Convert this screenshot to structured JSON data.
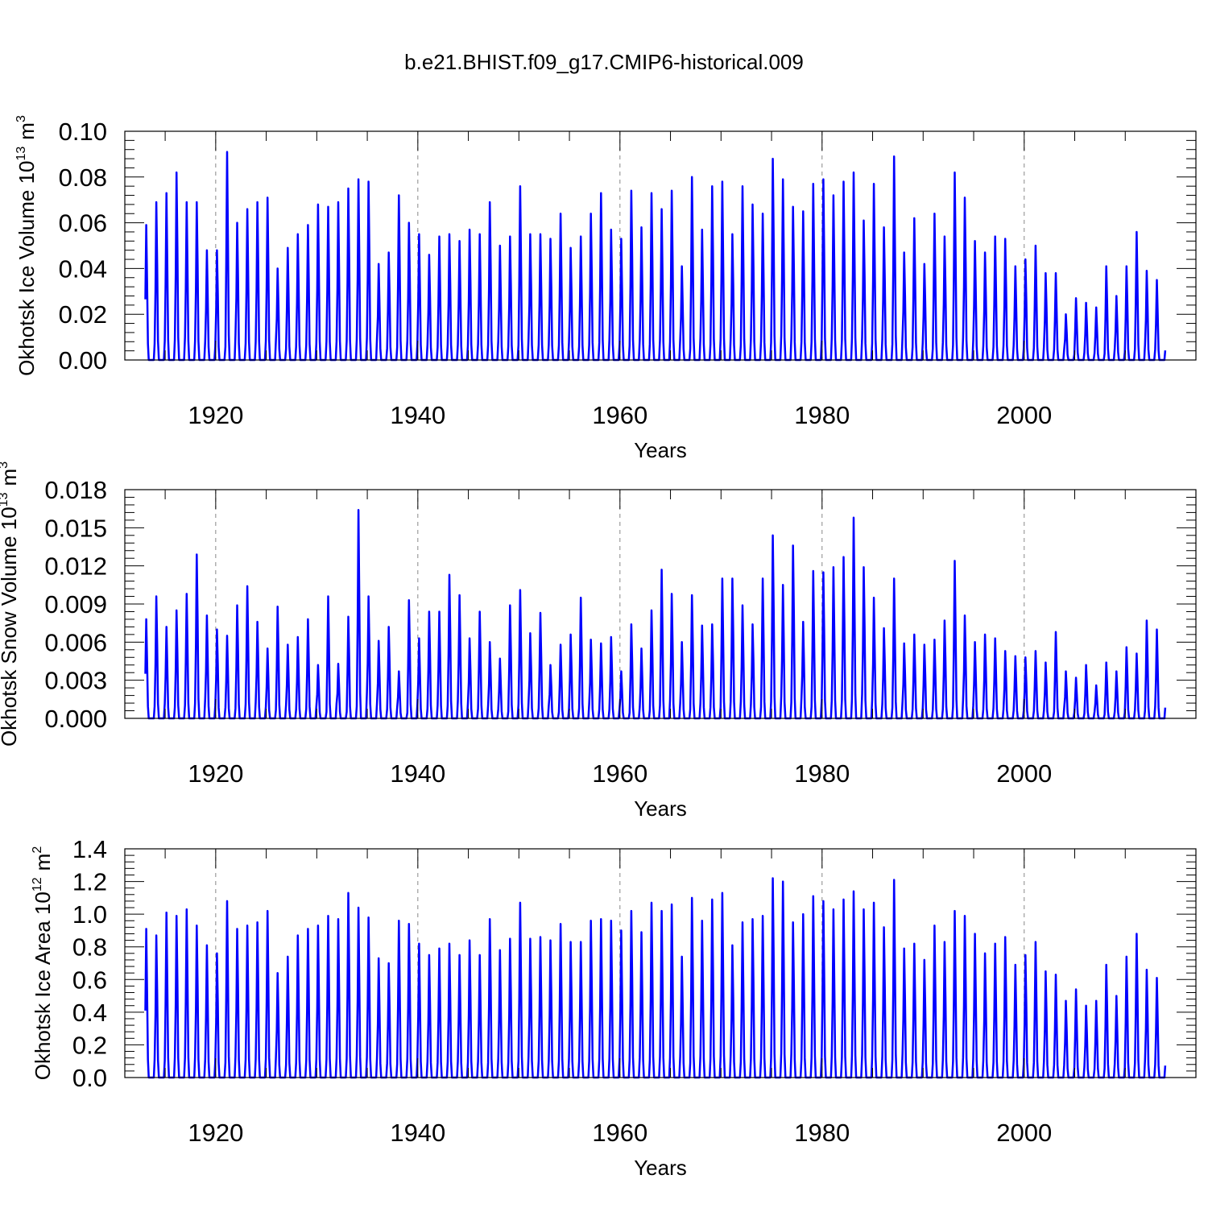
{
  "title": "b.e21.BHIST.f09_g17.CMIP6-historical.009",
  "colors": {
    "series": "#0000ff",
    "axis": "#000000",
    "grid": "#888888"
  },
  "chart_data": [
    {
      "type": "line",
      "series_name": "Okhotsk Ice Volume",
      "xlabel": "Years",
      "ylabel": "Okhotsk Ice Volume 10",
      "ylabel_exp": "13",
      "ylabel_unit": "m",
      "ylabel_unit_exp": "3",
      "xlim": [
        1913,
        2015
      ],
      "ylim": [
        0,
        0.1
      ],
      "xticks": [
        1920,
        1940,
        1960,
        1980,
        2000
      ],
      "xtick_labels": [
        "1920",
        "1940",
        "1960",
        "1980",
        "2000"
      ],
      "yticks": [
        0,
        0.02,
        0.04,
        0.06,
        0.08,
        0.1
      ],
      "ytick_labels": [
        "0.00",
        "0.02",
        "0.04",
        "0.06",
        "0.08",
        "0.10"
      ],
      "grid": "vertical dashed at major x ticks",
      "annual_peaks": [
        0.059,
        0.069,
        0.073,
        0.082,
        0.069,
        0.069,
        0.048,
        0.048,
        0.091,
        0.06,
        0.066,
        0.069,
        0.071,
        0.04,
        0.049,
        0.055,
        0.059,
        0.068,
        0.067,
        0.069,
        0.075,
        0.079,
        0.078,
        0.042,
        0.047,
        0.072,
        0.06,
        0.055,
        0.046,
        0.054,
        0.055,
        0.052,
        0.057,
        0.055,
        0.069,
        0.05,
        0.054,
        0.076,
        0.055,
        0.055,
        0.053,
        0.064,
        0.049,
        0.054,
        0.064,
        0.073,
        0.057,
        0.053,
        0.074,
        0.058,
        0.073,
        0.066,
        0.074,
        0.041,
        0.08,
        0.057,
        0.076,
        0.078,
        0.055,
        0.076,
        0.068,
        0.064,
        0.088,
        0.079,
        0.067,
        0.065,
        0.077,
        0.079,
        0.072,
        0.078,
        0.082,
        0.061,
        0.077,
        0.058,
        0.089,
        0.047,
        0.062,
        0.042,
        0.064,
        0.054,
        0.082,
        0.071,
        0.052,
        0.047,
        0.054,
        0.053,
        0.041,
        0.044,
        0.05,
        0.038,
        0.038,
        0.02,
        0.027,
        0.025,
        0.023,
        0.041,
        0.028,
        0.041,
        0.056,
        0.039,
        0.035
      ]
    },
    {
      "type": "line",
      "series_name": "Okhotsk Snow Volume",
      "xlabel": "Years",
      "ylabel": "Okhotsk Snow Volume 10",
      "ylabel_exp": "13",
      "ylabel_unit": "m",
      "ylabel_unit_exp": "3",
      "xlim": [
        1913,
        2015
      ],
      "ylim": [
        0,
        0.018
      ],
      "xticks": [
        1920,
        1940,
        1960,
        1980,
        2000
      ],
      "xtick_labels": [
        "1920",
        "1940",
        "1960",
        "1980",
        "2000"
      ],
      "yticks": [
        0,
        0.003,
        0.006,
        0.009,
        0.012,
        0.015,
        0.018
      ],
      "ytick_labels": [
        "0.000",
        "0.003",
        "0.006",
        "0.009",
        "0.012",
        "0.015",
        "0.018"
      ],
      "grid": "vertical dashed at major x ticks",
      "annual_peaks": [
        0.0078,
        0.0096,
        0.0072,
        0.0085,
        0.0098,
        0.0129,
        0.0081,
        0.007,
        0.0065,
        0.0089,
        0.0104,
        0.0076,
        0.0055,
        0.0088,
        0.0058,
        0.0064,
        0.0078,
        0.0042,
        0.0096,
        0.0043,
        0.008,
        0.0164,
        0.0096,
        0.0061,
        0.0072,
        0.0037,
        0.0093,
        0.0063,
        0.0084,
        0.0084,
        0.0113,
        0.0097,
        0.0063,
        0.0084,
        0.006,
        0.0047,
        0.0089,
        0.0101,
        0.0067,
        0.0083,
        0.0042,
        0.0058,
        0.0066,
        0.0095,
        0.0062,
        0.0059,
        0.0064,
        0.0037,
        0.0074,
        0.0055,
        0.0085,
        0.0117,
        0.0098,
        0.006,
        0.0097,
        0.0073,
        0.0074,
        0.011,
        0.011,
        0.0089,
        0.0074,
        0.011,
        0.0144,
        0.0105,
        0.0136,
        0.0076,
        0.0116,
        0.0115,
        0.0119,
        0.0127,
        0.0158,
        0.0119,
        0.0095,
        0.0071,
        0.011,
        0.0059,
        0.0066,
        0.0058,
        0.0062,
        0.0077,
        0.0124,
        0.0081,
        0.006,
        0.0066,
        0.0063,
        0.0053,
        0.0049,
        0.0048,
        0.0053,
        0.0044,
        0.0068,
        0.0037,
        0.0032,
        0.0042,
        0.0026,
        0.0044,
        0.0037,
        0.0056,
        0.0051,
        0.0077,
        0.007
      ]
    },
    {
      "type": "line",
      "series_name": "Okhotsk Ice Area",
      "xlabel": "Years",
      "ylabel": "Okhotsk Ice Area 10",
      "ylabel_exp": "12",
      "ylabel_unit": "m",
      "ylabel_unit_exp": "2",
      "xlim": [
        1913,
        2015
      ],
      "ylim": [
        0,
        1.4
      ],
      "xticks": [
        1920,
        1940,
        1960,
        1980,
        2000
      ],
      "xtick_labels": [
        "1920",
        "1940",
        "1960",
        "1980",
        "2000"
      ],
      "yticks": [
        0,
        0.2,
        0.4,
        0.6,
        0.8,
        1.0,
        1.2,
        1.4
      ],
      "ytick_labels": [
        "0.0",
        "0.2",
        "0.4",
        "0.6",
        "0.8",
        "1.0",
        "1.2",
        "1.4"
      ],
      "grid": "vertical dashed at major x ticks",
      "annual_peaks": [
        0.91,
        0.87,
        1.01,
        0.99,
        1.03,
        0.93,
        0.81,
        0.76,
        1.08,
        0.91,
        0.93,
        0.95,
        1.02,
        0.64,
        0.74,
        0.87,
        0.91,
        0.93,
        0.99,
        0.97,
        1.13,
        1.04,
        0.98,
        0.73,
        0.7,
        0.96,
        0.94,
        0.82,
        0.75,
        0.79,
        0.82,
        0.75,
        0.84,
        0.75,
        0.97,
        0.78,
        0.85,
        1.07,
        0.85,
        0.86,
        0.84,
        0.94,
        0.83,
        0.83,
        0.96,
        0.97,
        0.96,
        0.9,
        1.02,
        0.89,
        1.07,
        1.02,
        1.06,
        0.74,
        1.1,
        0.96,
        1.09,
        1.13,
        0.81,
        0.95,
        0.97,
        0.99,
        1.22,
        1.2,
        0.95,
        1.0,
        1.11,
        1.08,
        1.03,
        1.09,
        1.14,
        1.03,
        1.07,
        0.92,
        1.21,
        0.79,
        0.82,
        0.72,
        0.93,
        0.83,
        1.02,
        0.99,
        0.88,
        0.76,
        0.82,
        0.86,
        0.69,
        0.75,
        0.83,
        0.65,
        0.63,
        0.47,
        0.54,
        0.44,
        0.47,
        0.69,
        0.5,
        0.74,
        0.88,
        0.66,
        0.61
      ]
    }
  ]
}
